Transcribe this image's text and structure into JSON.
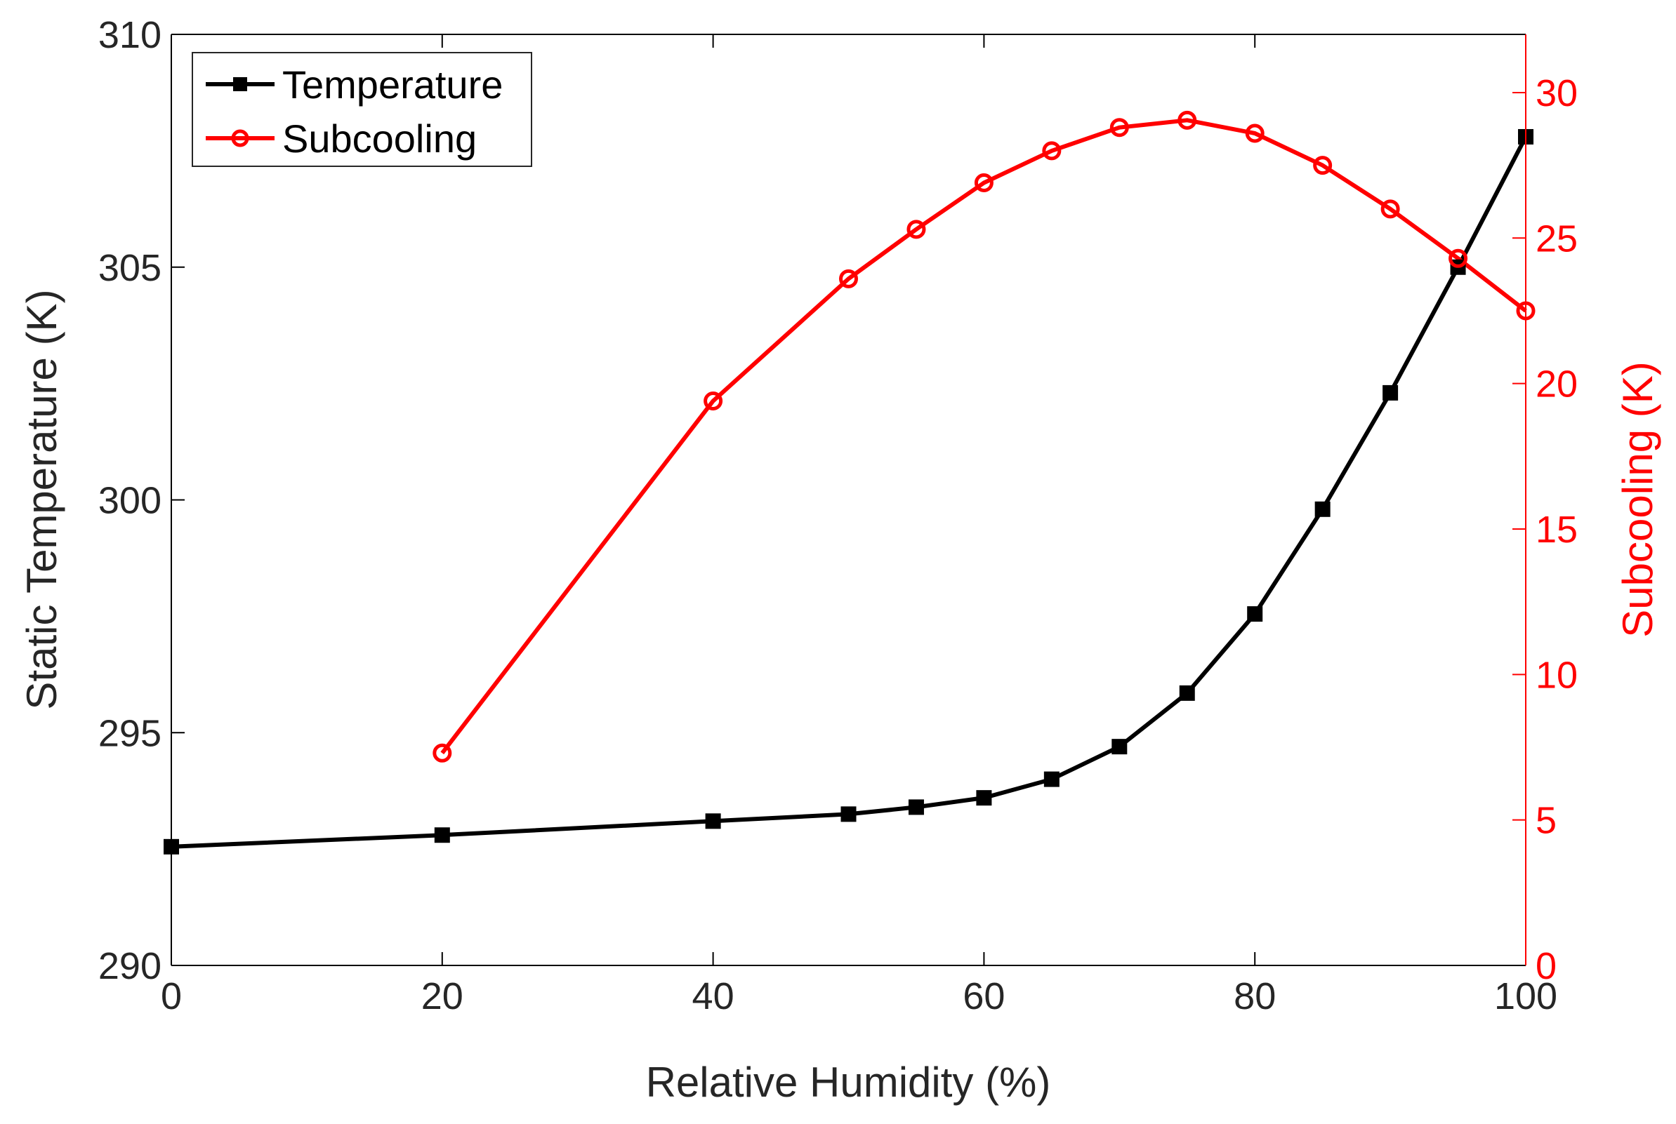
{
  "chart_data": {
    "type": "line",
    "xlabel": "Relative Humidity (%)",
    "ylabel_left": "Static Temperature (K)",
    "ylabel_right": "Subcooling (K)",
    "xlim": [
      0,
      100
    ],
    "ylim_left": [
      290,
      310
    ],
    "ylim_right": [
      0,
      32
    ],
    "x_ticks": [
      0,
      20,
      40,
      60,
      80,
      100
    ],
    "y_left_ticks": [
      290,
      295,
      300,
      305,
      310
    ],
    "y_right_ticks": [
      0,
      5,
      10,
      15,
      20,
      25,
      30
    ],
    "legend_position": "top-left",
    "grid": false,
    "series": [
      {
        "name": "Temperature",
        "axis": "left",
        "color": "#000000",
        "marker": "square",
        "x": [
          0,
          20,
          40,
          50,
          55,
          60,
          65,
          70,
          75,
          80,
          85,
          90,
          95,
          100
        ],
        "y": [
          292.55,
          292.8,
          293.1,
          293.25,
          293.4,
          293.6,
          294.0,
          294.7,
          295.85,
          297.55,
          299.8,
          302.3,
          305.0,
          307.8
        ]
      },
      {
        "name": "Subcooling",
        "axis": "right",
        "color": "#ff0000",
        "marker": "circle",
        "x": [
          20,
          40,
          50,
          55,
          60,
          65,
          70,
          75,
          80,
          85,
          90,
          95,
          100
        ],
        "y": [
          7.3,
          19.4,
          23.6,
          25.3,
          26.9,
          28.0,
          28.8,
          29.05,
          28.6,
          27.5,
          26.0,
          24.3,
          22.5
        ]
      }
    ]
  }
}
